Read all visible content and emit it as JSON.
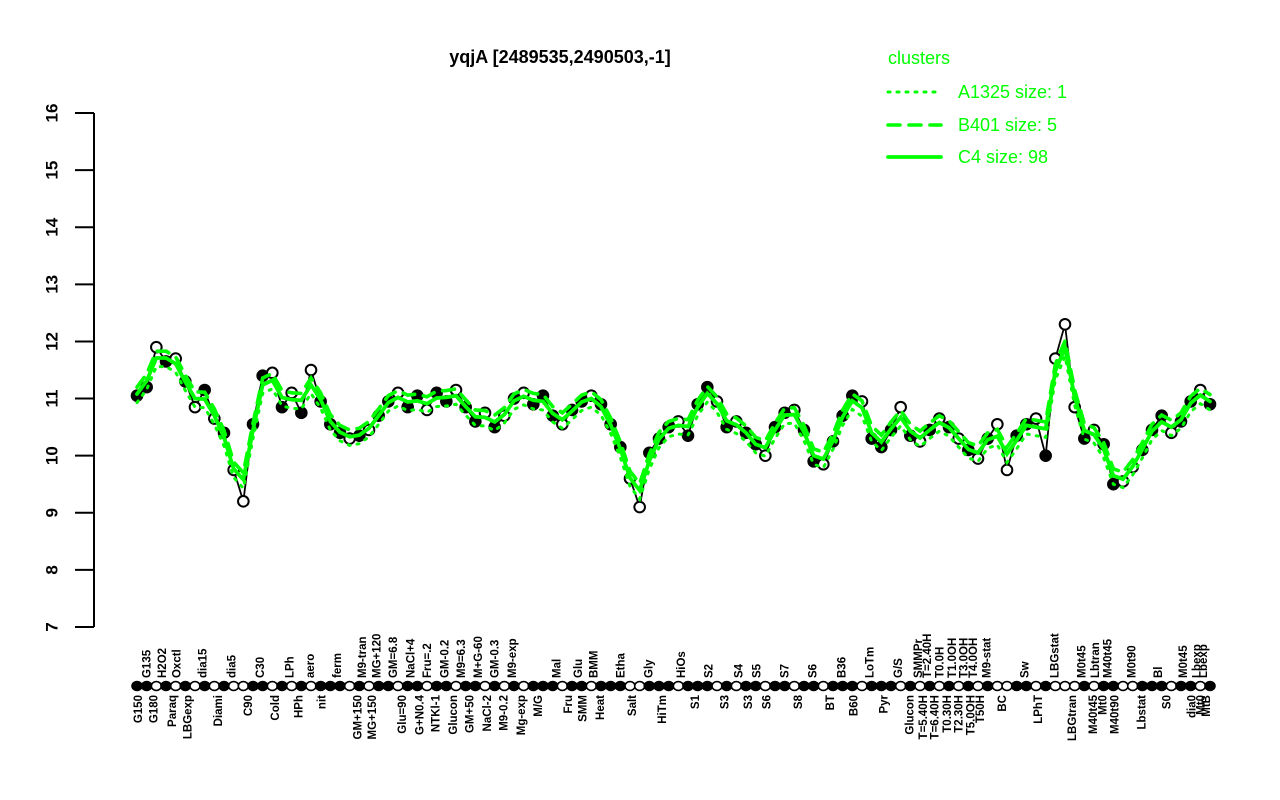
{
  "colors": {
    "cluster": "#00ff00",
    "point": "#000000",
    "background": "#ffffff"
  },
  "legend": {
    "title": "clusters",
    "entries": [
      {
        "label": "A1325 size: 1",
        "style": "dotted"
      },
      {
        "label": "B401 size: 5",
        "style": "dashed"
      },
      {
        "label": "C4 size: 98",
        "style": "solid"
      }
    ]
  },
  "chart_data": {
    "type": "line",
    "title": "yqjA [2489535,2490503,-1]",
    "xlabel": "",
    "ylabel": "",
    "ylim": [
      7,
      16
    ],
    "yticks": [
      7,
      8,
      9,
      10,
      11,
      12,
      13,
      14,
      15,
      16
    ],
    "grid": false,
    "legend_position": "top-right",
    "values": [
      11.05,
      11.2,
      11.9,
      11.65,
      11.7,
      11.3,
      10.85,
      11.15,
      10.65,
      10.4,
      9.75,
      9.2,
      10.55,
      11.4,
      11.45,
      10.85,
      11.1,
      10.75,
      11.5,
      10.95,
      10.55,
      10.4,
      10.3,
      10.35,
      10.45,
      10.7,
      10.95,
      11.1,
      10.85,
      11.05,
      10.8,
      11.1,
      10.95,
      11.15,
      10.85,
      10.6,
      10.75,
      10.5,
      10.7,
      11.0,
      11.1,
      10.9,
      11.05,
      10.7,
      10.55,
      10.8,
      10.95,
      11.05,
      10.9,
      10.55,
      10.15,
      9.6,
      9.1,
      10.05,
      10.3,
      10.5,
      10.6,
      10.35,
      10.9,
      11.2,
      10.95,
      10.5,
      10.6,
      10.4,
      10.2,
      10.0,
      10.5,
      10.75,
      10.8,
      10.45,
      9.9,
      9.85,
      10.25,
      10.7,
      11.05,
      10.95,
      10.3,
      10.15,
      10.45,
      10.85,
      10.35,
      10.25,
      10.45,
      10.65,
      10.5,
      10.3,
      10.1,
      9.95,
      10.3,
      10.55,
      9.75,
      10.35,
      10.55,
      10.65,
      10.0,
      11.7,
      12.3,
      10.85,
      10.3,
      10.45,
      10.2,
      9.5,
      9.55,
      9.8,
      10.1,
      10.45,
      10.7,
      10.4,
      10.6,
      10.95,
      11.15,
      10.9
    ],
    "open": [
      0,
      0,
      1,
      0,
      1,
      0,
      1,
      0,
      1,
      0,
      1,
      1,
      0,
      0,
      1,
      0,
      1,
      0,
      1,
      0,
      0,
      0,
      1,
      0,
      1,
      0,
      0,
      1,
      0,
      0,
      1,
      0,
      0,
      1,
      0,
      0,
      1,
      0,
      1,
      0,
      1,
      0,
      0,
      0,
      1,
      0,
      0,
      1,
      0,
      0,
      0,
      1,
      1,
      0,
      0,
      0,
      1,
      0,
      0,
      0,
      1,
      0,
      1,
      0,
      0,
      1,
      0,
      0,
      1,
      0,
      0,
      1,
      0,
      0,
      0,
      1,
      0,
      0,
      0,
      1,
      0,
      1,
      0,
      1,
      0,
      1,
      0,
      1,
      0,
      1,
      1,
      0,
      0,
      1,
      0,
      1,
      1,
      1,
      0,
      1,
      0,
      0,
      1,
      1,
      0,
      0,
      0,
      1,
      0,
      0,
      1,
      0
    ],
    "clusters": [
      {
        "name": "A1325",
        "size": 1,
        "style": "dotted",
        "offset": -0.15
      },
      {
        "name": "B401",
        "size": 5,
        "style": "dashed",
        "offset": 0.12
      },
      {
        "name": "C4",
        "size": 98,
        "style": "solid",
        "offset": 0
      }
    ],
    "x_labels": [
      [
        0.1,
        "G150",
        "b"
      ],
      [
        1.0,
        "G135",
        "t"
      ],
      [
        1.7,
        "G180",
        "b"
      ],
      [
        2.6,
        "H2O2",
        "t"
      ],
      [
        3.6,
        "Paraq",
        "b"
      ],
      [
        4.1,
        "Oxctl",
        "t"
      ],
      [
        5.2,
        "LBGexp",
        "b"
      ],
      [
        6.8,
        "dia15",
        "t"
      ],
      [
        8.4,
        "Diami",
        "b"
      ],
      [
        9.8,
        "dia5",
        "t"
      ],
      [
        11.5,
        "C90",
        "b"
      ],
      [
        12.7,
        "C30",
        "t"
      ],
      [
        14.3,
        "Cold",
        "b"
      ],
      [
        15.8,
        "LPh",
        "t"
      ],
      [
        16.7,
        "HPh",
        "b"
      ],
      [
        17.9,
        "aero",
        "t"
      ],
      [
        19.1,
        "nit",
        "b"
      ],
      [
        20.7,
        "ferm",
        "t"
      ],
      [
        22.8,
        "GM+150",
        "b"
      ],
      [
        23.3,
        "M9-tran",
        "t"
      ],
      [
        24.3,
        "MG+150",
        "b"
      ],
      [
        24.8,
        "MG+120",
        "t"
      ],
      [
        26.5,
        "GM=6.8",
        "t"
      ],
      [
        27.4,
        "Glu=90",
        "b"
      ],
      [
        28.3,
        "NaCl+4",
        "t"
      ],
      [
        29.2,
        "G+N0.4",
        "b"
      ],
      [
        30.0,
        "Fru=.2",
        "t"
      ],
      [
        30.9,
        "NTKl-1",
        "b"
      ],
      [
        31.8,
        "GM-0.2",
        "t"
      ],
      [
        32.7,
        "Glucon",
        "b"
      ],
      [
        33.5,
        "M9=6.3",
        "t"
      ],
      [
        34.4,
        "GM+50",
        "b"
      ],
      [
        35.3,
        "M+G-60",
        "t"
      ],
      [
        36.2,
        "NaCl-2",
        "b"
      ],
      [
        37.0,
        "GM-0.3",
        "t"
      ],
      [
        37.9,
        "M9-0.2",
        "b"
      ],
      [
        38.8,
        "M9-exp",
        "t"
      ],
      [
        39.7,
        "Mg-exp",
        "b"
      ],
      [
        41.5,
        "M/G",
        "b"
      ],
      [
        43.4,
        "Mal",
        "t"
      ],
      [
        44.6,
        "Fru",
        "b"
      ],
      [
        45.6,
        "Glu",
        "t"
      ],
      [
        46.1,
        "SMM",
        "b"
      ],
      [
        47.2,
        "BMM",
        "t"
      ],
      [
        47.9,
        "Heat",
        "b"
      ],
      [
        50.0,
        "Etha",
        "t"
      ],
      [
        51.2,
        "Salt",
        "b"
      ],
      [
        52.9,
        "Gly",
        "t"
      ],
      [
        54.3,
        "HiTm",
        "b"
      ],
      [
        56.3,
        "HiOs",
        "t"
      ],
      [
        57.7,
        "S1",
        "b"
      ],
      [
        59.1,
        "S2",
        "t"
      ],
      [
        60.8,
        "S3",
        "b"
      ],
      [
        62.2,
        "S4",
        "t"
      ],
      [
        63.2,
        "S3",
        "b"
      ],
      [
        64.1,
        "S5",
        "t"
      ],
      [
        65.1,
        "S6",
        "b"
      ],
      [
        67.0,
        "S7",
        "t"
      ],
      [
        68.4,
        "S8",
        "b"
      ],
      [
        69.9,
        "S6",
        "t"
      ],
      [
        71.7,
        "BT",
        "b"
      ],
      [
        72.9,
        "B36",
        "t"
      ],
      [
        74.1,
        "B60",
        "b"
      ],
      [
        75.8,
        "LoTm",
        "t"
      ],
      [
        77.2,
        "Pyr",
        "b"
      ],
      [
        78.7,
        "G/S",
        "t"
      ],
      [
        79.9,
        "Glucon",
        "b"
      ],
      [
        80.8,
        "SMMPr",
        "t"
      ],
      [
        81.3,
        "T=5.40H",
        "b"
      ],
      [
        81.7,
        "T=2.40H",
        "t"
      ],
      [
        82.5,
        "T=6.40H",
        "b"
      ],
      [
        83.0,
        "T0.0H",
        "t"
      ],
      [
        83.8,
        "T0.30H",
        "b"
      ],
      [
        84.3,
        "T1.0OH",
        "t"
      ],
      [
        85.0,
        "T2.30H",
        "b"
      ],
      [
        85.5,
        "T3.0OH",
        "t"
      ],
      [
        86.2,
        "T5.0OH",
        "b"
      ],
      [
        86.5,
        "T4.0OH",
        "t"
      ],
      [
        87.2,
        "T50H",
        "b"
      ],
      [
        87.9,
        "M9-stat",
        "t"
      ],
      [
        89.5,
        "BC",
        "b"
      ],
      [
        91.8,
        "Sw",
        "t"
      ],
      [
        93.2,
        "LPhT",
        "b"
      ],
      [
        94.9,
        "LBGstat",
        "t"
      ],
      [
        96.7,
        "LBGtran",
        "b"
      ],
      [
        97.7,
        "M0t45",
        "t"
      ],
      [
        98.9,
        "M40t45",
        "b"
      ],
      [
        99.1,
        "Lbtran",
        "t"
      ],
      [
        99.9,
        "Mt0",
        "b"
      ],
      [
        100.4,
        "M40t45",
        "t"
      ],
      [
        101.1,
        "M40t90",
        "b"
      ],
      [
        102.9,
        "M0t90",
        "t"
      ],
      [
        103.9,
        "Lbstat",
        "b"
      ],
      [
        105.6,
        "Bl",
        "t"
      ],
      [
        106.5,
        "S0",
        "b"
      ],
      [
        108.2,
        "M0t45",
        "t"
      ],
      [
        109.1,
        "dia0",
        "b"
      ],
      [
        109.6,
        "Lbexp",
        "t"
      ],
      [
        110.0,
        "Mt0",
        "b"
      ],
      [
        110.3,
        "Lbexp",
        "t"
      ],
      [
        110.6,
        "MtB",
        "b"
      ]
    ]
  }
}
